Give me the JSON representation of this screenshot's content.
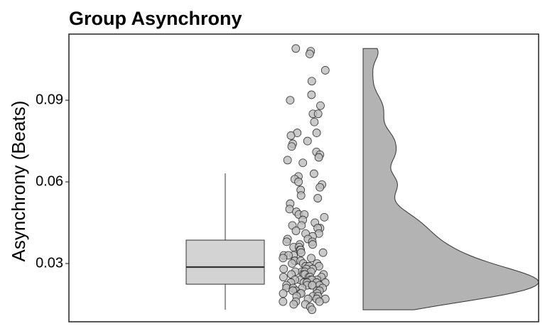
{
  "chart_data": {
    "type": "raincloud",
    "title": "Group Asynchrony",
    "y_label": "Asynchrony (Beats)",
    "ylim": [
      0.0086,
      0.1143
    ],
    "yticks": [
      0.03,
      0.06,
      0.09
    ],
    "box": {
      "whislo": 0.013,
      "q1": 0.0224,
      "med": 0.0287,
      "q3": 0.0386,
      "whishi": 0.0631,
      "color": "#d3d3d3"
    },
    "points": {
      "color": "#bdbdbd",
      "values": [
        0.108,
        0.109,
        0.107,
        0.101,
        0.097,
        0.092,
        0.09,
        0.088,
        0.085,
        0.085,
        0.082,
        0.078,
        0.078,
        0.077,
        0.075,
        0.074,
        0.073,
        0.071,
        0.07,
        0.069,
        0.068,
        0.067,
        0.063,
        0.062,
        0.061,
        0.06,
        0.059,
        0.058,
        0.057,
        0.055,
        0.054,
        0.052,
        0.05,
        0.049,
        0.048,
        0.048,
        0.047,
        0.046,
        0.045,
        0.044,
        0.044,
        0.043,
        0.043,
        0.042,
        0.041,
        0.041,
        0.04,
        0.039,
        0.039,
        0.038,
        0.038,
        0.037,
        0.037,
        0.036,
        0.036,
        0.035,
        0.035,
        0.034,
        0.034,
        0.033,
        0.033,
        0.033,
        0.032,
        0.032,
        0.031,
        0.031,
        0.031,
        0.03,
        0.03,
        0.03,
        0.029,
        0.029,
        0.029,
        0.028,
        0.028,
        0.028,
        0.027,
        0.027,
        0.027,
        0.027,
        0.026,
        0.026,
        0.026,
        0.026,
        0.025,
        0.025,
        0.025,
        0.025,
        0.024,
        0.024,
        0.024,
        0.024,
        0.024,
        0.023,
        0.023,
        0.023,
        0.023,
        0.023,
        0.022,
        0.022,
        0.022,
        0.022,
        0.022,
        0.021,
        0.021,
        0.021,
        0.021,
        0.02,
        0.02,
        0.02,
        0.02,
        0.019,
        0.019,
        0.019,
        0.019,
        0.018,
        0.018,
        0.018,
        0.017,
        0.017,
        0.017,
        0.016,
        0.016,
        0.016,
        0.015,
        0.015,
        0.014,
        0.013
      ]
    },
    "density_color": "#b3b3b3"
  }
}
